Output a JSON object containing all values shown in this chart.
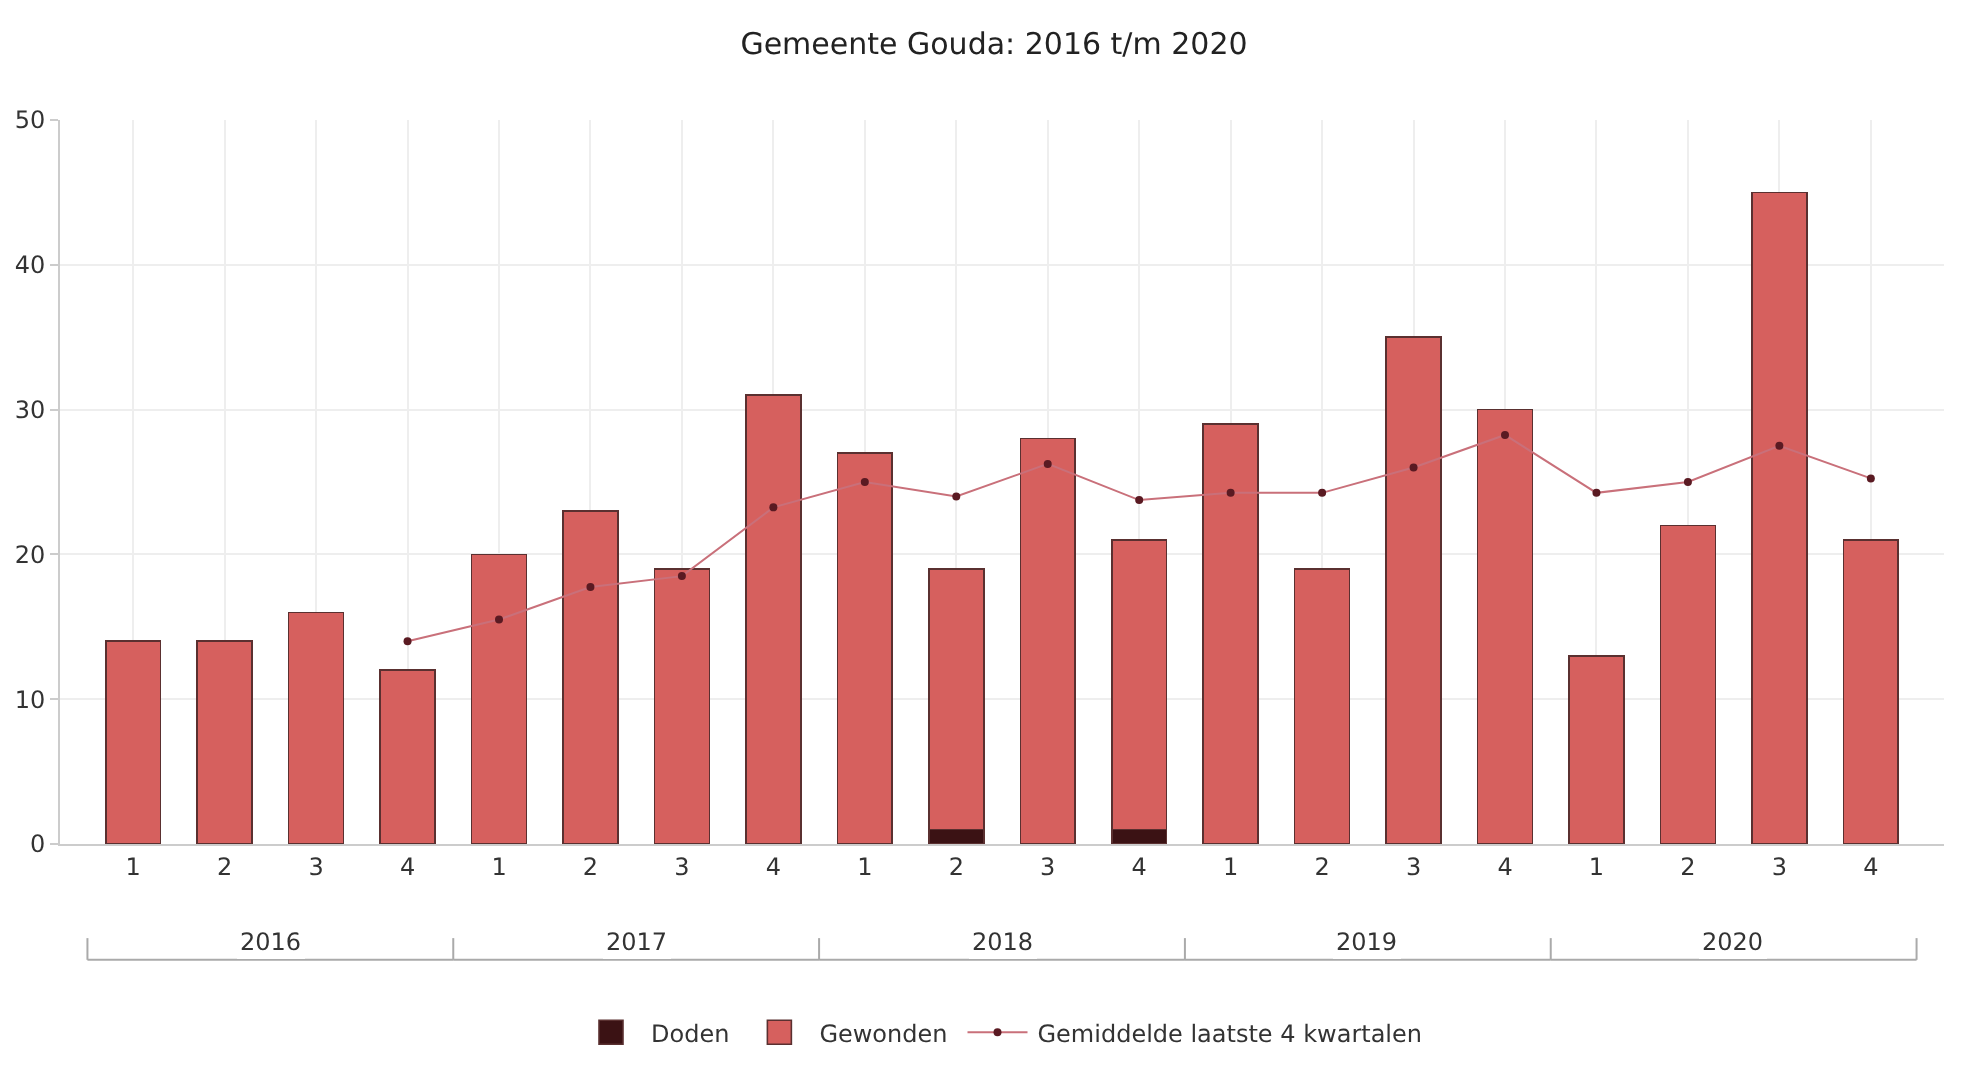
{
  "chart_data": {
    "type": "bar",
    "title": "Gemeente Gouda: 2016 t/m 2020",
    "stacked": true,
    "categories": [
      "1",
      "2",
      "3",
      "4",
      "1",
      "2",
      "3",
      "4",
      "1",
      "2",
      "3",
      "4",
      "1",
      "2",
      "3",
      "4",
      "1",
      "2",
      "3",
      "4"
    ],
    "series": [
      {
        "name": "Doden",
        "color": "#3b1214",
        "values": [
          0,
          0,
          0,
          0,
          0,
          0,
          0,
          0,
          0,
          1,
          0,
          1,
          0,
          0,
          0,
          0,
          0,
          0,
          0,
          0
        ]
      },
      {
        "name": "Gewonden",
        "color": "#d6605e",
        "values": [
          14,
          14,
          16,
          12,
          20,
          23,
          19,
          31,
          27,
          18,
          28,
          20,
          29,
          19,
          35,
          30,
          13,
          22,
          45,
          21
        ]
      },
      {
        "name": "Gemiddelde laatste 4 kwartalen",
        "type": "line",
        "color": "#c9707a",
        "marker": "circle",
        "values": [
          null,
          null,
          null,
          14,
          15.5,
          17.75,
          18.5,
          23.25,
          25,
          24,
          26.25,
          23.75,
          24.25,
          24.25,
          26,
          28.25,
          24.25,
          25,
          27.5,
          25.25
        ]
      }
    ],
    "annotations": [
      "2016",
      "2017",
      "2018",
      "2019",
      "2020"
    ],
    "ylim": [
      0,
      50
    ],
    "yticks": [
      0,
      10,
      20,
      30,
      40,
      50
    ],
    "grid": true,
    "legend": "bottom"
  }
}
